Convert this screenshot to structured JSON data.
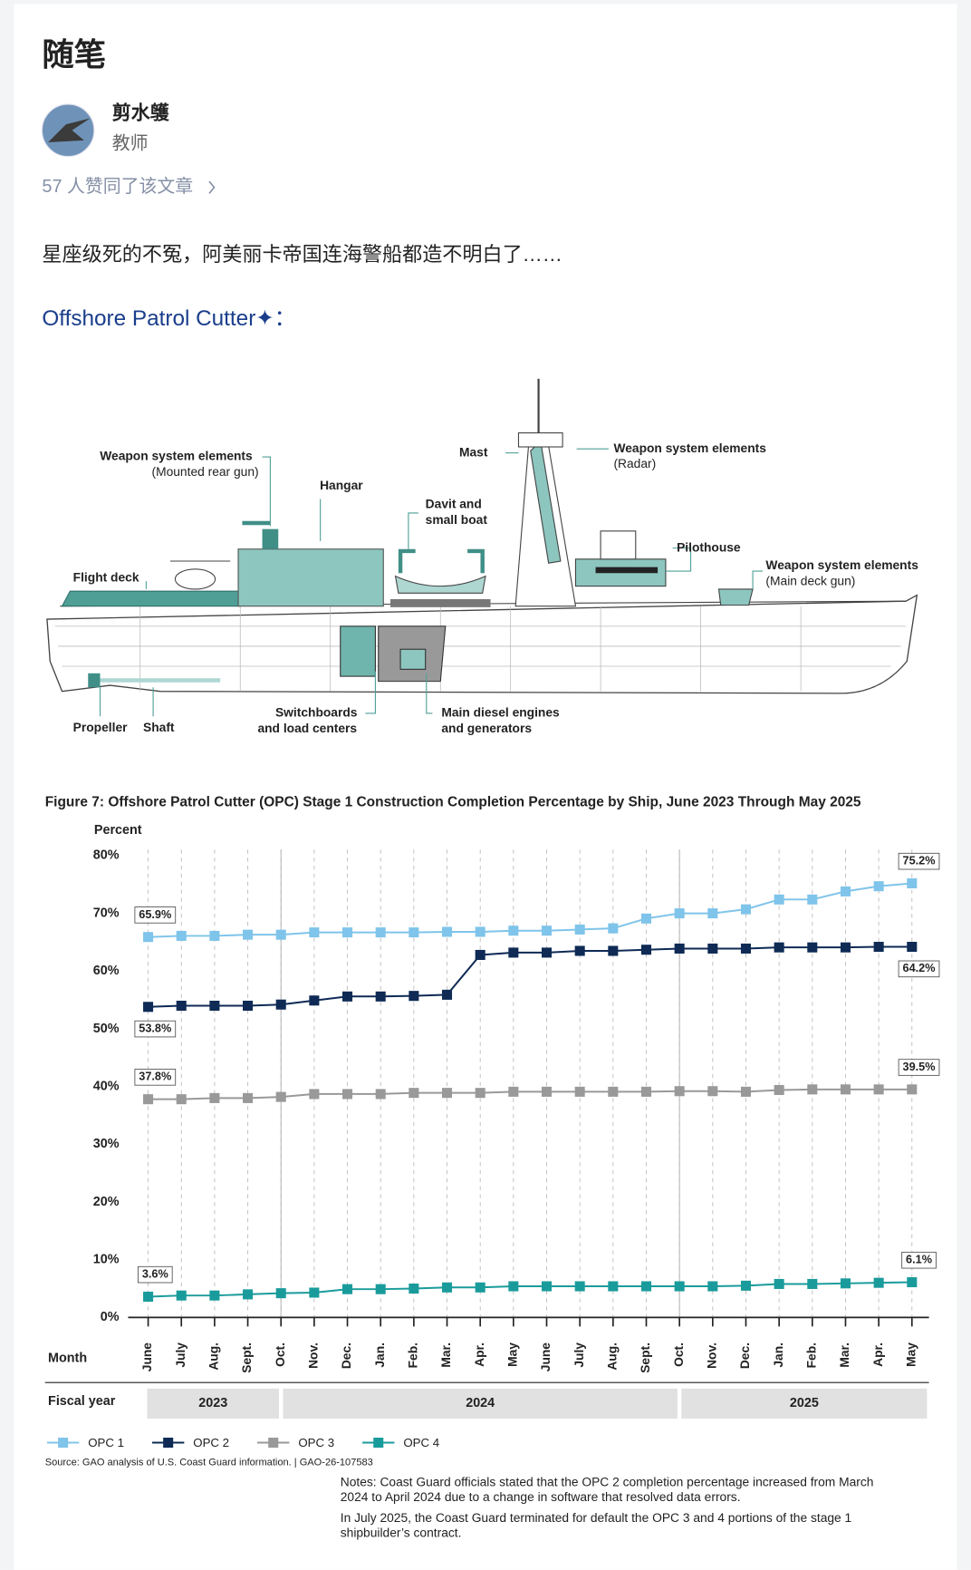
{
  "article": {
    "title": "随笔",
    "author": "剪水鹱",
    "author_title": "教师",
    "likes": "57 人赞同了该文章",
    "text": "星座级死的不冤，阿美丽卡帝国连海警船都造不明白了……",
    "subheading": "Offshore Patrol Cutter✦："
  },
  "diagram": {
    "labels": [
      {
        "lines": [
          "Weapon system elements",
          "(Mounted rear gun)"
        ]
      },
      {
        "lines": [
          "Hangar"
        ]
      },
      {
        "lines": [
          "Mast"
        ]
      },
      {
        "lines": [
          "Weapon system elements",
          "(Radar)"
        ]
      },
      {
        "lines": [
          "Davit and",
          "small boat"
        ]
      },
      {
        "lines": [
          "Pilothouse"
        ]
      },
      {
        "lines": [
          "Weapon system elements",
          "(Main deck gun)"
        ]
      },
      {
        "lines": [
          "Flight deck"
        ]
      },
      {
        "lines": [
          "Propeller"
        ]
      },
      {
        "lines": [
          "Shaft"
        ]
      },
      {
        "lines": [
          "Switchboards",
          "and load centers"
        ]
      },
      {
        "lines": [
          "Main diesel engines",
          "and generators"
        ]
      }
    ]
  },
  "chart_data": {
    "type": "line",
    "title": "Figure 7: Offshore Patrol Cutter (OPC) Stage 1 Construction Completion Percentage by Ship, June 2023 Through May 2025",
    "y_label": "Percent",
    "x_label": "Month",
    "fiscal_year_label": "Fiscal year",
    "fiscal_years": [
      "2023",
      "2024",
      "2025"
    ],
    "categories": [
      "June",
      "July",
      "Aug.",
      "Sept.",
      "Oct.",
      "Nov.",
      "Dec.",
      "Jan.",
      "Feb.",
      "Mar.",
      "Apr.",
      "May",
      "June",
      "July",
      "Aug.",
      "Sept.",
      "Oct.",
      "Nov.",
      "Dec.",
      "Jan.",
      "Feb.",
      "Mar.",
      "Apr.",
      "May"
    ],
    "ylim": [
      0,
      80
    ],
    "yticks": [
      {
        "value": 0,
        "label": "0%"
      },
      {
        "value": 10,
        "label": "10%"
      },
      {
        "value": 20,
        "label": "20%"
      },
      {
        "value": 30,
        "label": "30%"
      },
      {
        "value": 40,
        "label": "40%"
      },
      {
        "value": 50,
        "label": "50%"
      },
      {
        "value": 60,
        "label": "60%"
      },
      {
        "value": 70,
        "label": "70%"
      },
      {
        "value": 80,
        "label": "80%"
      }
    ],
    "series": [
      {
        "name": "OPC 1",
        "color": "#7fc4ea",
        "values": [
          65.9,
          66.1,
          66.1,
          66.3,
          66.3,
          66.7,
          66.7,
          66.7,
          66.7,
          66.8,
          66.8,
          67.0,
          67.0,
          67.2,
          67.4,
          69.1,
          70.0,
          70.0,
          70.7,
          72.4,
          72.4,
          73.8,
          74.7,
          75.2
        ],
        "value_labels": [
          "65.9%",
          null,
          null,
          null,
          null,
          null,
          null,
          null,
          null,
          null,
          null,
          null,
          null,
          null,
          null,
          null,
          null,
          null,
          null,
          null,
          null,
          null,
          null,
          "75.2%"
        ]
      },
      {
        "name": "OPC 2",
        "color": "#0e2a55",
        "values": [
          53.8,
          54.0,
          54.0,
          54.0,
          54.2,
          54.9,
          55.6,
          55.6,
          55.7,
          55.9,
          62.8,
          63.2,
          63.2,
          63.5,
          63.5,
          63.7,
          63.9,
          63.9,
          63.9,
          64.1,
          64.1,
          64.1,
          64.2,
          64.2
        ],
        "value_labels": [
          "53.8%",
          null,
          null,
          null,
          null,
          null,
          null,
          null,
          null,
          null,
          null,
          null,
          null,
          null,
          null,
          null,
          null,
          null,
          null,
          null,
          null,
          null,
          null,
          "64.2%"
        ]
      },
      {
        "name": "OPC 3",
        "color": "#999999",
        "values": [
          37.8,
          37.8,
          38.0,
          38.0,
          38.2,
          38.7,
          38.7,
          38.7,
          38.9,
          38.9,
          38.9,
          39.1,
          39.1,
          39.1,
          39.1,
          39.1,
          39.2,
          39.2,
          39.1,
          39.4,
          39.5,
          39.5,
          39.5,
          39.5
        ],
        "value_labels": [
          "37.8%",
          null,
          null,
          null,
          null,
          null,
          null,
          null,
          null,
          null,
          null,
          null,
          null,
          null,
          null,
          null,
          null,
          null,
          null,
          null,
          null,
          null,
          null,
          "39.5%"
        ]
      },
      {
        "name": "OPC 4",
        "color": "#1a9b9b",
        "values": [
          3.6,
          3.8,
          3.8,
          4.0,
          4.2,
          4.3,
          4.9,
          4.9,
          5.0,
          5.2,
          5.2,
          5.4,
          5.4,
          5.4,
          5.4,
          5.4,
          5.4,
          5.4,
          5.5,
          5.8,
          5.8,
          5.9,
          6.0,
          6.1
        ],
        "value_labels": [
          "3.6%",
          null,
          null,
          null,
          null,
          null,
          null,
          null,
          null,
          null,
          null,
          null,
          null,
          null,
          null,
          null,
          null,
          null,
          null,
          null,
          null,
          null,
          null,
          "6.1%"
        ]
      }
    ],
    "source": "Source: GAO analysis of U.S. Coast Guard information.  |  GAO-26-107583",
    "notes": [
      [
        "Notes: Coast Guard officials stated that the OPC 2 completion percentage increased from March",
        "2024 to April 2024 due to a change in software that resolved data errors."
      ],
      [
        "In July 2025, the Coast Guard terminated for default the OPC 3 and 4 portions of the stage 1",
        "shipbuilder’s contract."
      ]
    ]
  }
}
